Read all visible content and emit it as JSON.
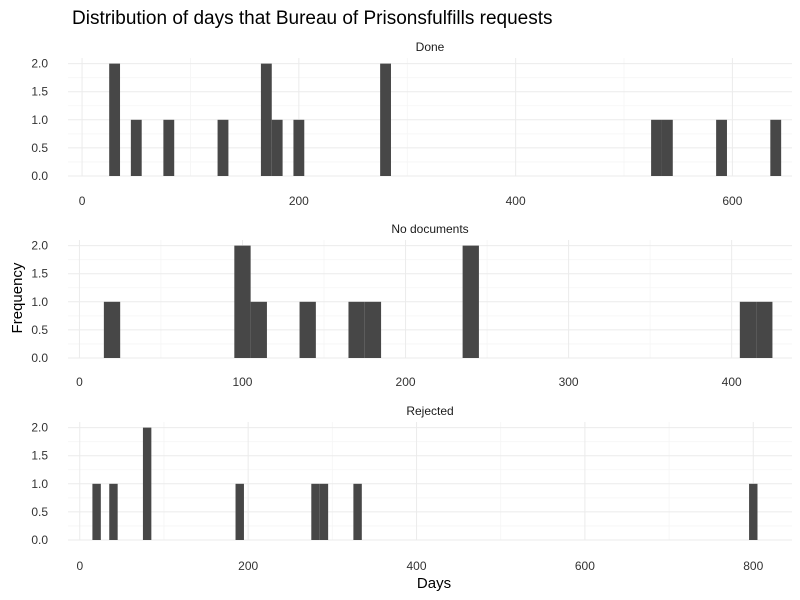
{
  "chart_data": {
    "type": "bar",
    "title": "Distribution of days that Bureau of Prisonsfulfills requests",
    "xlabel": "Days",
    "ylabel": "Frequency",
    "bar_color": "#474747",
    "grid": true,
    "panels": [
      {
        "label": "Done",
        "xlim": [
          -13,
          655
        ],
        "ylim": [
          0,
          2.1
        ],
        "x_ticks": [
          0,
          200,
          400,
          600
        ],
        "y_ticks": [
          0.0,
          0.5,
          1.0,
          1.5,
          2.0
        ],
        "y_tick_labels": [
          "0.0",
          "0.5",
          "1.0",
          "1.5",
          "2.0"
        ],
        "bin_width": 10,
        "bins": [
          {
            "x": 30,
            "count": 2
          },
          {
            "x": 50,
            "count": 1
          },
          {
            "x": 80,
            "count": 1
          },
          {
            "x": 130,
            "count": 1
          },
          {
            "x": 170,
            "count": 2
          },
          {
            "x": 180,
            "count": 1
          },
          {
            "x": 200,
            "count": 1
          },
          {
            "x": 280,
            "count": 2
          },
          {
            "x": 530,
            "count": 1
          },
          {
            "x": 540,
            "count": 1
          },
          {
            "x": 590,
            "count": 1
          },
          {
            "x": 640,
            "count": 1
          }
        ]
      },
      {
        "label": "No documents",
        "xlim": [
          -7,
          437
        ],
        "ylim": [
          0,
          2.1
        ],
        "x_ticks": [
          0,
          100,
          200,
          300,
          400
        ],
        "y_ticks": [
          0.0,
          0.5,
          1.0,
          1.5,
          2.0
        ],
        "y_tick_labels": [
          "0.0",
          "0.5",
          "1.0",
          "1.5",
          "2.0"
        ],
        "bin_width": 10,
        "bins": [
          {
            "x": 20,
            "count": 1
          },
          {
            "x": 100,
            "count": 2
          },
          {
            "x": 110,
            "count": 1
          },
          {
            "x": 140,
            "count": 1
          },
          {
            "x": 170,
            "count": 1
          },
          {
            "x": 180,
            "count": 1
          },
          {
            "x": 240,
            "count": 2
          },
          {
            "x": 410,
            "count": 1
          },
          {
            "x": 420,
            "count": 1
          }
        ]
      },
      {
        "label": "Rejected",
        "xlim": [
          -14,
          846
        ],
        "ylim": [
          0,
          2.1
        ],
        "x_ticks": [
          0,
          200,
          400,
          600,
          800
        ],
        "y_ticks": [
          0.0,
          0.5,
          1.0,
          1.5,
          2.0
        ],
        "y_tick_labels": [
          "0.0",
          "0.5",
          "1.0",
          "1.5",
          "2.0"
        ],
        "bin_width": 10,
        "bins": [
          {
            "x": 20,
            "count": 1
          },
          {
            "x": 40,
            "count": 1
          },
          {
            "x": 80,
            "count": 2
          },
          {
            "x": 190,
            "count": 1
          },
          {
            "x": 280,
            "count": 1
          },
          {
            "x": 290,
            "count": 1
          },
          {
            "x": 330,
            "count": 1
          },
          {
            "x": 800,
            "count": 1
          }
        ]
      }
    ]
  }
}
